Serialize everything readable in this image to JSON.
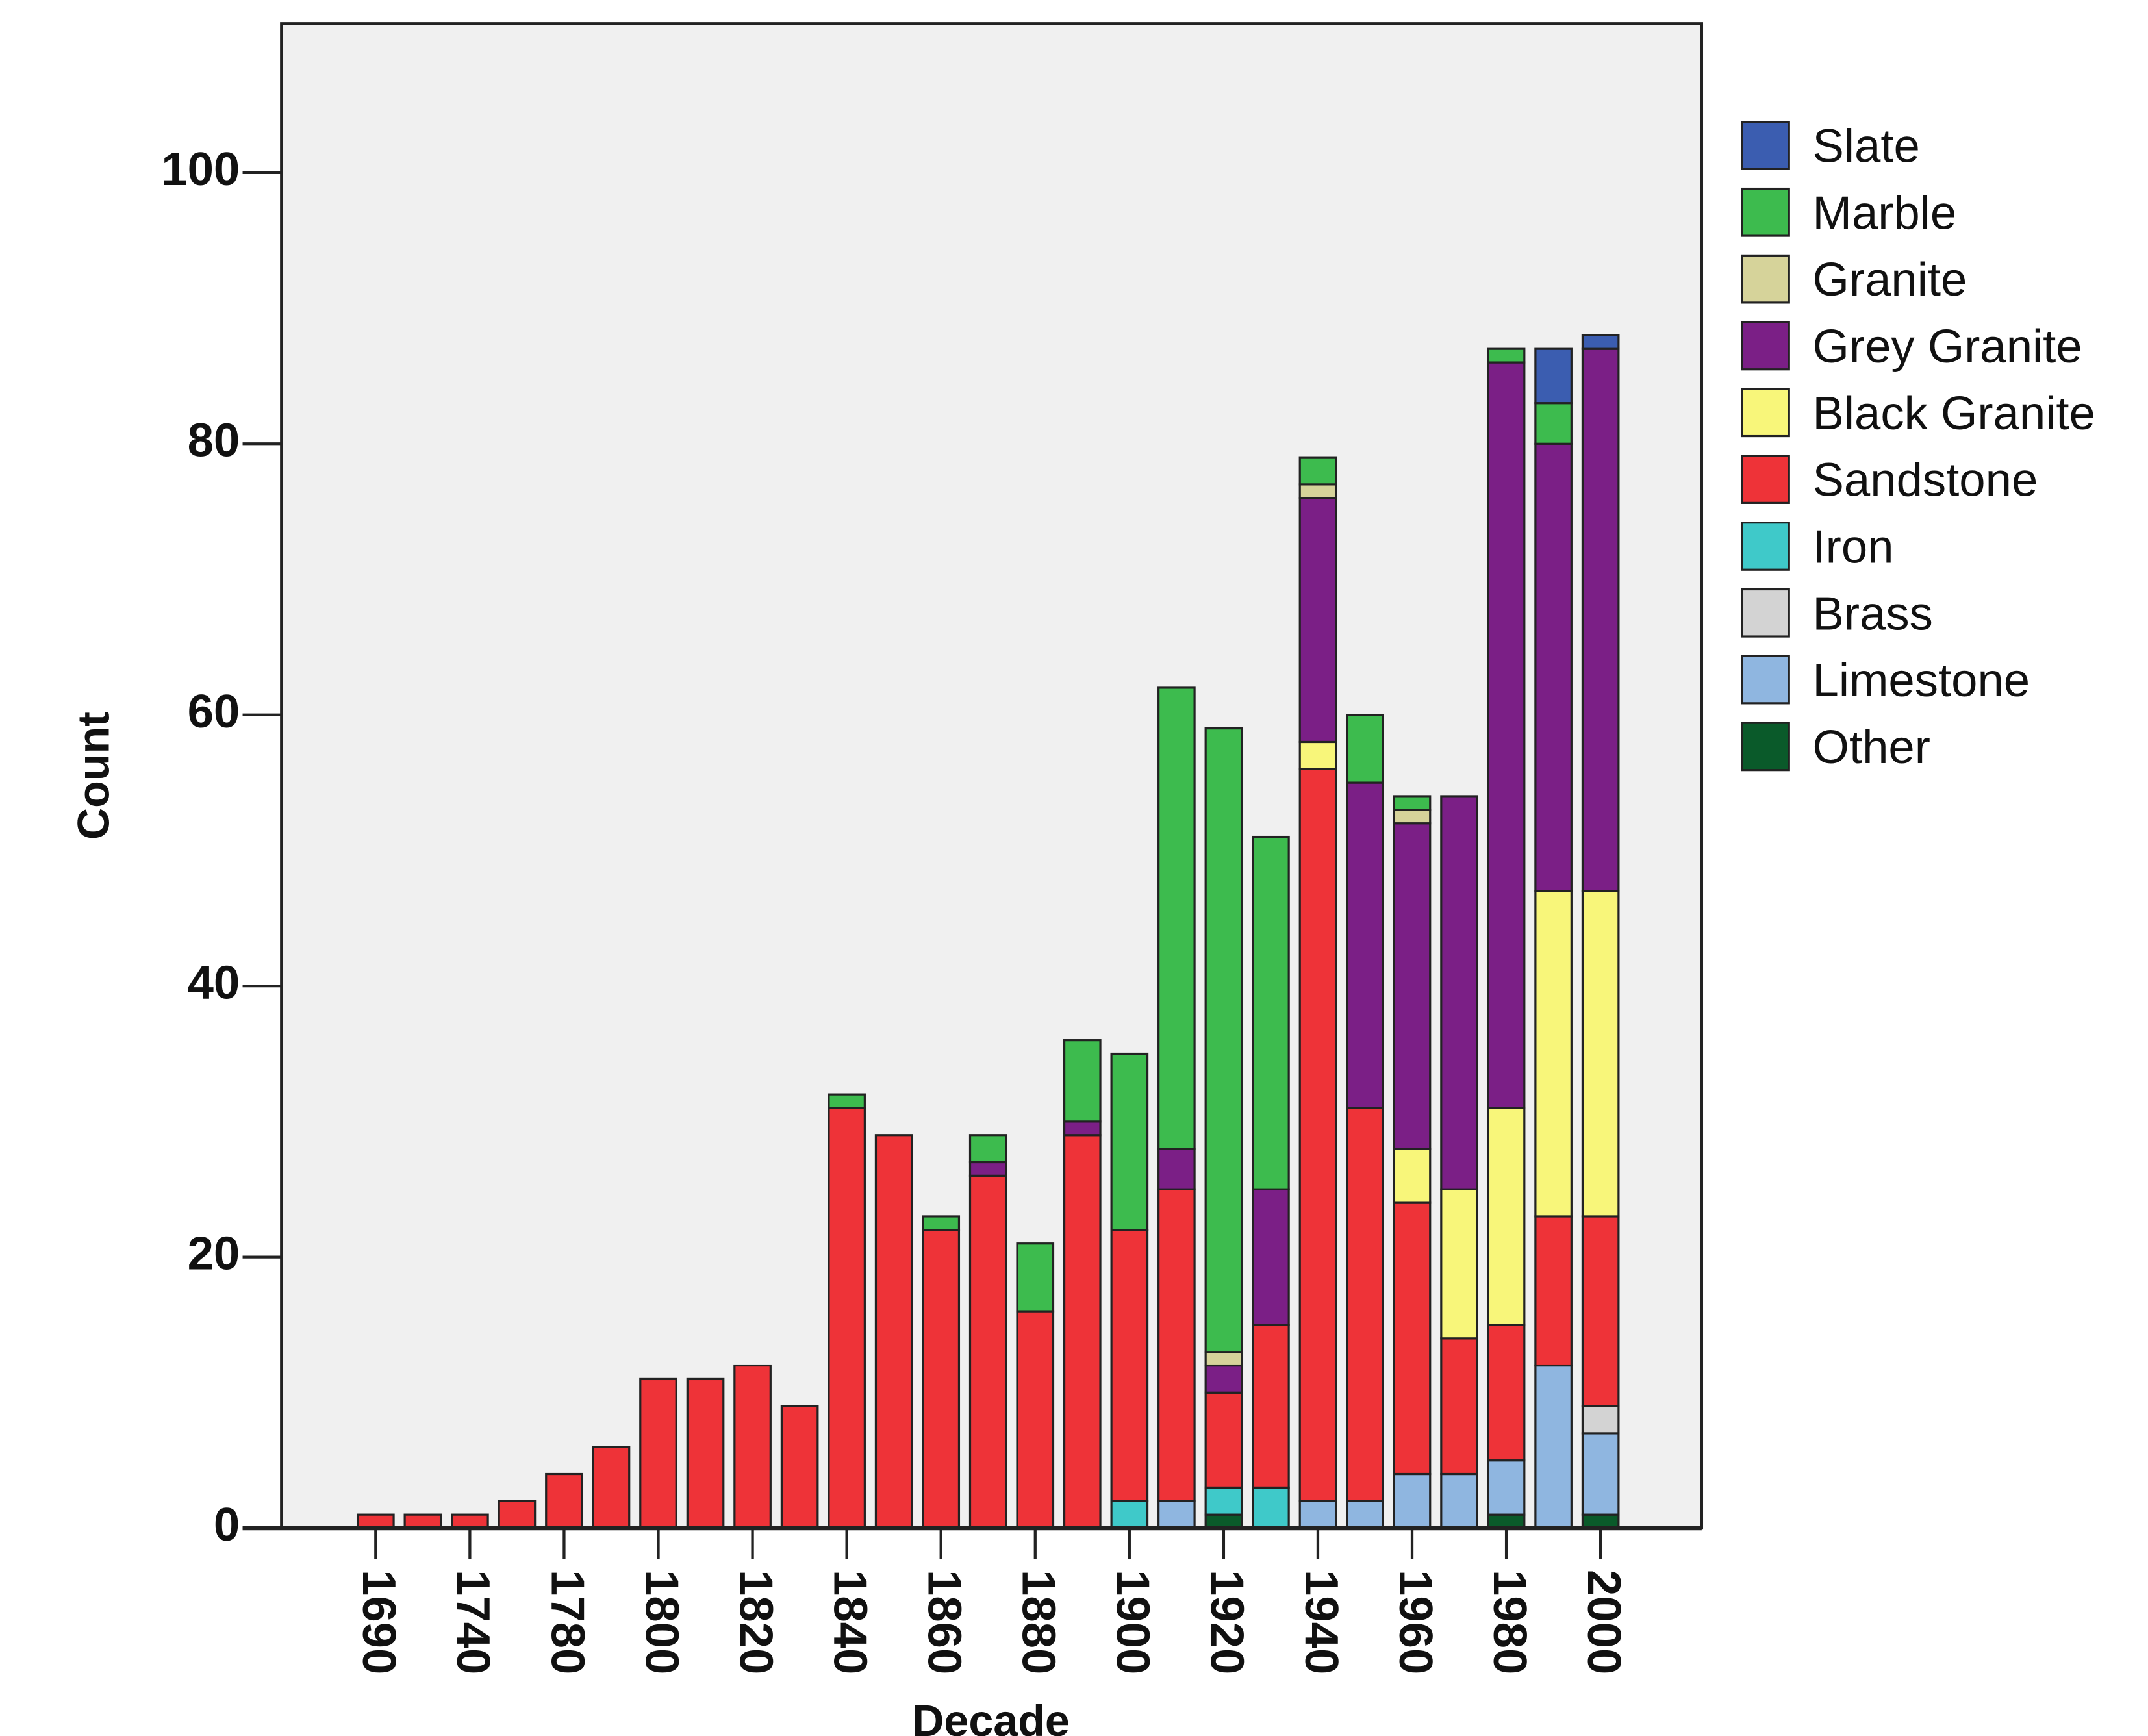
{
  "chart_data": {
    "type": "stacked-bar",
    "x_label": "Decade",
    "y_label": "Count",
    "categories": [
      "1690",
      null,
      "1740",
      null,
      "1780",
      null,
      "1800",
      null,
      "1820",
      null,
      "1840",
      null,
      "1860",
      null,
      "1880",
      null,
      "1900",
      null,
      "1920",
      null,
      "1940",
      null,
      "1960",
      null,
      "1980",
      null,
      "2000"
    ],
    "ylim": [
      0,
      111
    ],
    "yticks": [
      0,
      20,
      40,
      60,
      80,
      100
    ],
    "background": "#f0f0f0",
    "legend": "right",
    "series": [
      {
        "name": "Slate",
        "color": "#3b5db0",
        "values": [
          0,
          0,
          0,
          0,
          0,
          0,
          0,
          0,
          0,
          0,
          0,
          0,
          0,
          0,
          0,
          0,
          0,
          0,
          0,
          0,
          0,
          0,
          0,
          0,
          0,
          4,
          1
        ]
      },
      {
        "name": "Marble",
        "color": "#3dbb4e",
        "values": [
          0,
          0,
          0,
          0,
          0,
          0,
          0,
          0,
          0,
          0,
          1,
          0,
          1,
          2,
          5,
          6,
          13,
          34,
          46,
          26,
          2,
          5,
          1,
          0,
          1,
          3,
          0
        ]
      },
      {
        "name": "Granite",
        "color": "#d6d39a",
        "values": [
          0,
          0,
          0,
          0,
          0,
          0,
          0,
          0,
          0,
          0,
          0,
          0,
          0,
          0,
          0,
          0,
          0,
          0,
          1,
          0,
          1,
          0,
          1,
          0,
          0,
          0,
          0
        ]
      },
      {
        "name": "Grey Granite",
        "color": "#7b1f86",
        "values": [
          0,
          0,
          0,
          0,
          0,
          0,
          0,
          0,
          0,
          0,
          0,
          0,
          0,
          1,
          0,
          1,
          0,
          3,
          2,
          10,
          18,
          24,
          24,
          29,
          55,
          33,
          40
        ]
      },
      {
        "name": "Black Granite",
        "color": "#f8f67a",
        "values": [
          0,
          0,
          0,
          0,
          0,
          0,
          0,
          0,
          0,
          0,
          0,
          0,
          0,
          0,
          0,
          0,
          0,
          0,
          0,
          0,
          2,
          0,
          4,
          11,
          16,
          24,
          24
        ]
      },
      {
        "name": "Sandstone",
        "color": "#ee3338",
        "values": [
          1,
          1,
          1,
          2,
          4,
          6,
          11,
          11,
          12,
          9,
          31,
          29,
          22,
          26,
          16,
          29,
          20,
          23,
          7,
          12,
          54,
          29,
          20,
          10,
          10,
          11,
          14
        ]
      },
      {
        "name": "Iron",
        "color": "#3fc9c9",
        "values": [
          0,
          0,
          0,
          0,
          0,
          0,
          0,
          0,
          0,
          0,
          0,
          0,
          0,
          0,
          0,
          0,
          2,
          0,
          2,
          3,
          0,
          0,
          0,
          0,
          0,
          0,
          0
        ]
      },
      {
        "name": "Brass",
        "color": "#d3d3d3",
        "values": [
          0,
          0,
          0,
          0,
          0,
          0,
          0,
          0,
          0,
          0,
          0,
          0,
          0,
          0,
          0,
          0,
          0,
          0,
          0,
          0,
          0,
          0,
          0,
          0,
          0,
          0,
          2
        ]
      },
      {
        "name": "Limestone",
        "color": "#8fb6e0",
        "values": [
          0,
          0,
          0,
          0,
          0,
          0,
          0,
          0,
          0,
          0,
          0,
          0,
          0,
          0,
          0,
          0,
          0,
          2,
          0,
          0,
          2,
          2,
          4,
          4,
          4,
          12,
          6
        ]
      },
      {
        "name": "Other",
        "color": "#0a5a2a",
        "values": [
          0,
          0,
          0,
          0,
          0,
          0,
          0,
          0,
          0,
          0,
          0,
          0,
          0,
          0,
          0,
          0,
          0,
          0,
          1,
          0,
          0,
          0,
          0,
          0,
          1,
          0,
          1
        ]
      }
    ]
  }
}
